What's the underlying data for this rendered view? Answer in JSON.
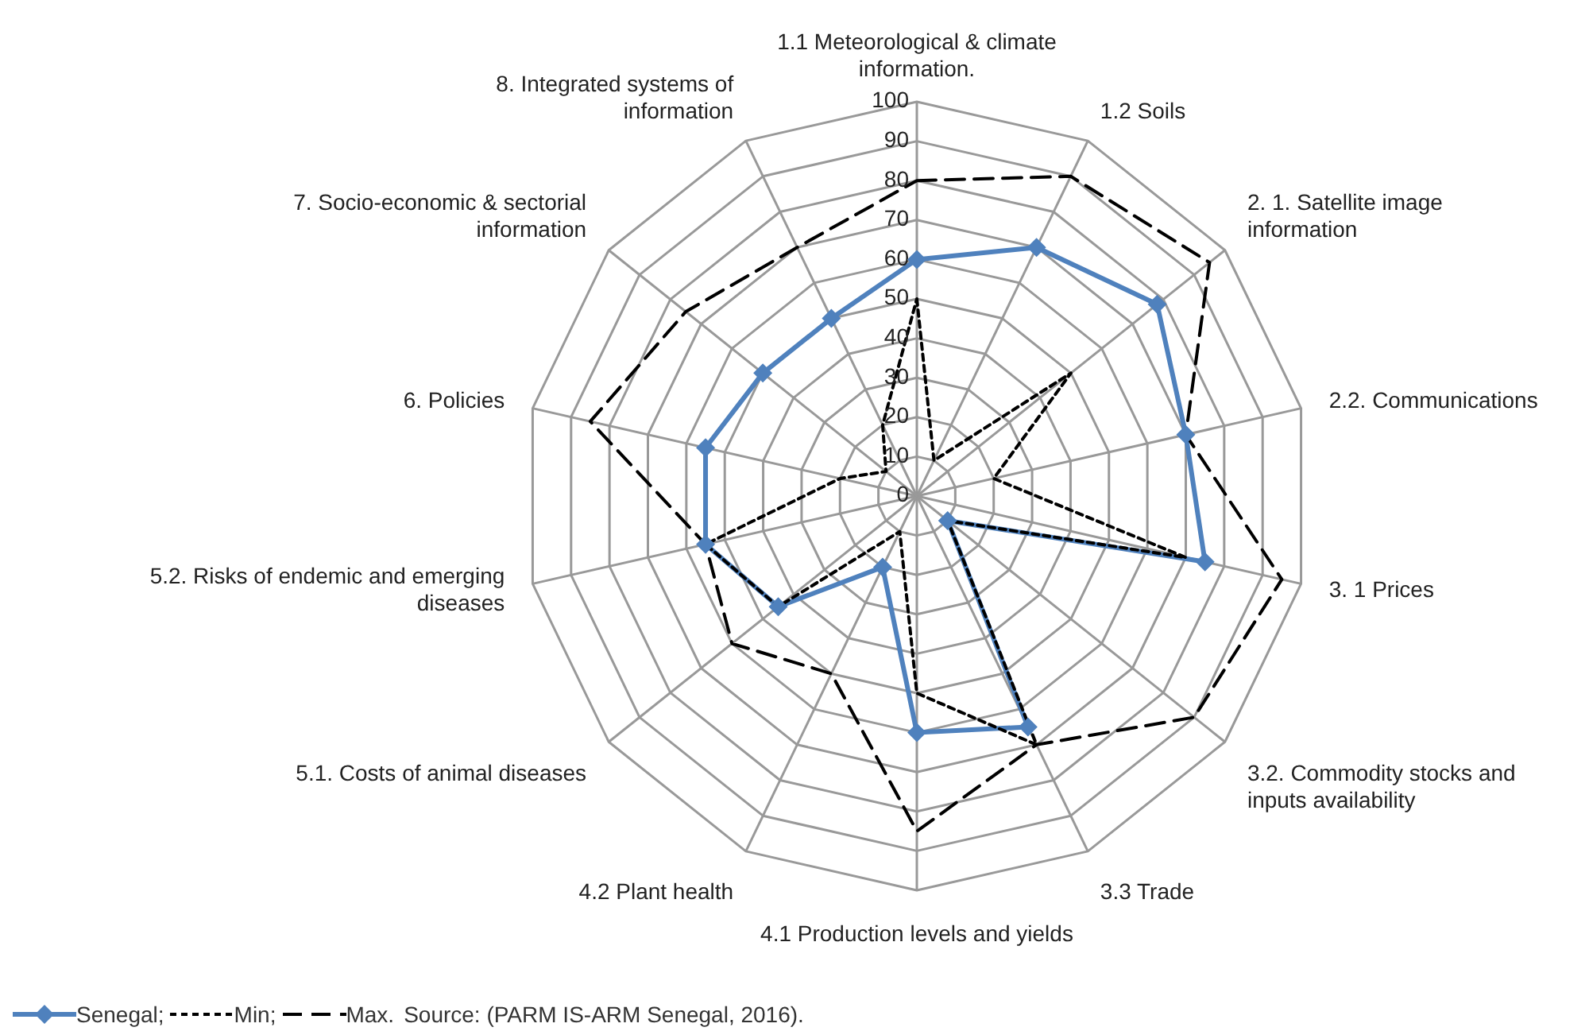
{
  "chart_data": {
    "type": "radar",
    "categories": [
      "1.1 Meteorological & climate information.",
      "1.2 Soils",
      "2. 1. Satellite image information",
      "2.2. Communications",
      "3. 1 Prices",
      "3.2. Commodity stocks and inputs availability",
      "3.3 Trade",
      "4.1 Production levels and yields",
      "4.2 Plant health",
      "5.1. Costs of animal diseases",
      "5.2. Risks of endemic and emerging diseases",
      "6. Policies",
      "7. Socio-economic & sectorial information",
      "8. Integrated systems of information"
    ],
    "series": [
      {
        "name": "Senegal;",
        "color": "#4f81bd",
        "marker": "diamond",
        "line_style": "solid",
        "values": [
          60,
          70,
          78,
          70,
          75,
          10,
          65,
          60,
          20,
          45,
          55,
          55,
          50,
          50
        ]
      },
      {
        "name": "Min;",
        "color": "#000000",
        "marker": "none",
        "line_style": "dotted",
        "values": [
          50,
          10,
          50,
          20,
          70,
          10,
          70,
          50,
          10,
          45,
          55,
          20,
          10,
          20
        ]
      },
      {
        "name": "Max.",
        "color": "#000000",
        "marker": "none",
        "line_style": "dashed",
        "values": [
          80,
          90,
          95,
          70,
          95,
          90,
          70,
          85,
          50,
          60,
          55,
          85,
          75,
          70
        ]
      }
    ],
    "ylim": [
      0,
      100
    ],
    "yticks": [
      0,
      10,
      20,
      30,
      40,
      50,
      60,
      70,
      80,
      90,
      100
    ],
    "grid": true,
    "legend": "bottom left",
    "annotations": [
      "Source: (PARM IS-ARM Senegal, 2016)."
    ]
  }
}
